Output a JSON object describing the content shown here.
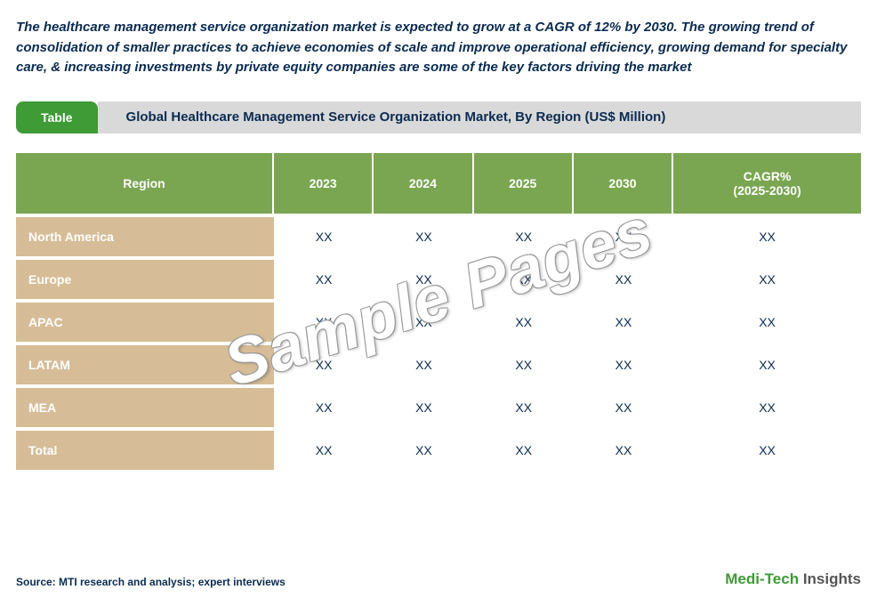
{
  "colors": {
    "intro_text": "#0a2b52",
    "tab_bg": "#3e9b35",
    "title_bar_bg": "#d9d9d9",
    "title_text_color": "#0a2b52",
    "header_bg": "#7aa651",
    "region_cell_bg": "#d6bd98",
    "value_text": "#0a2b52",
    "source_text": "#0a2b52",
    "brand_accent": "#3e9b35",
    "brand_dark": "#555555"
  },
  "intro": "The healthcare management service organization market is expected to grow at a CAGR of 12% by 2030. The growing trend of consolidation of smaller practices to achieve economies of scale and improve operational efficiency, growing demand for specialty care, & increasing investments by private equity companies are some of the key factors driving the market",
  "titlebar": {
    "tab": "Table",
    "text": "Global Healthcare Management Service Organization Market, By Region (US$ Million)"
  },
  "table": {
    "type": "table",
    "columns": [
      "Region",
      "2023",
      "2024",
      "2025",
      "2030",
      "CAGR%\n(2025-2030)"
    ],
    "rows": [
      {
        "region": "North America",
        "cells": [
          "XX",
          "XX",
          "XX",
          "XX",
          "XX"
        ]
      },
      {
        "region": "Europe",
        "cells": [
          "XX",
          "XX",
          "XX",
          "XX",
          "XX"
        ]
      },
      {
        "region": "APAC",
        "cells": [
          "XX",
          "XX",
          "XX",
          "XX",
          "XX"
        ]
      },
      {
        "region": "LATAM",
        "cells": [
          "XX",
          "XX",
          "XX",
          "XX",
          "XX"
        ]
      },
      {
        "region": "MEA",
        "cells": [
          "XX",
          "XX",
          "XX",
          "XX",
          "XX"
        ]
      },
      {
        "region": "Total",
        "cells": [
          "XX",
          "XX",
          "XX",
          "XX",
          "XX"
        ]
      }
    ]
  },
  "watermark": "Sample Pages",
  "footer": {
    "source": "Source: MTI research and analysis; expert interviews",
    "brand_parts": {
      "medi": "Medi",
      "dash": "-",
      "tech": "Tech",
      "space": " ",
      "insights": "Insights"
    }
  }
}
